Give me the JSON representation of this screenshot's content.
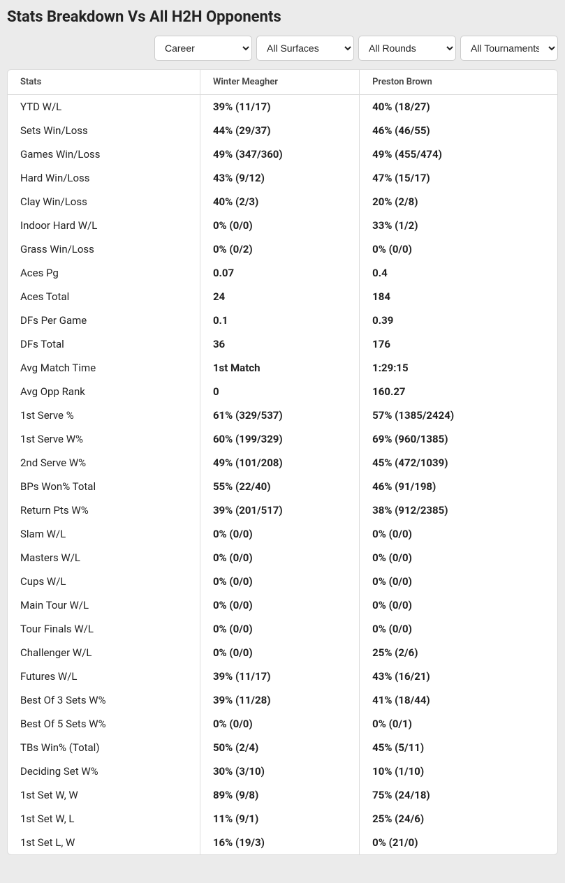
{
  "title": "Stats Breakdown Vs All H2H Opponents",
  "filters": {
    "career": "Career",
    "surfaces": "All Surfaces",
    "rounds": "All Rounds",
    "tournaments": "All Tournaments"
  },
  "columns": {
    "stats": "Stats",
    "p1": "Winter Meagher",
    "p2": "Preston Brown"
  },
  "rows": [
    {
      "label": "YTD W/L",
      "p1": "39% (11/17)",
      "p2": "40% (18/27)"
    },
    {
      "label": "Sets Win/Loss",
      "p1": "44% (29/37)",
      "p2": "46% (46/55)"
    },
    {
      "label": "Games Win/Loss",
      "p1": "49% (347/360)",
      "p2": "49% (455/474)"
    },
    {
      "label": "Hard Win/Loss",
      "p1": "43% (9/12)",
      "p2": "47% (15/17)"
    },
    {
      "label": "Clay Win/Loss",
      "p1": "40% (2/3)",
      "p2": "20% (2/8)"
    },
    {
      "label": "Indoor Hard W/L",
      "p1": "0% (0/0)",
      "p2": "33% (1/2)"
    },
    {
      "label": "Grass Win/Loss",
      "p1": "0% (0/2)",
      "p2": "0% (0/0)"
    },
    {
      "label": "Aces Pg",
      "p1": "0.07",
      "p2": "0.4"
    },
    {
      "label": "Aces Total",
      "p1": "24",
      "p2": "184"
    },
    {
      "label": "DFs Per Game",
      "p1": "0.1",
      "p2": "0.39"
    },
    {
      "label": "DFs Total",
      "p1": "36",
      "p2": "176"
    },
    {
      "label": "Avg Match Time",
      "p1": "1st Match",
      "p2": "1:29:15"
    },
    {
      "label": "Avg Opp Rank",
      "p1": "0",
      "p2": "160.27"
    },
    {
      "label": "1st Serve %",
      "p1": "61% (329/537)",
      "p2": "57% (1385/2424)"
    },
    {
      "label": "1st Serve W%",
      "p1": "60% (199/329)",
      "p2": "69% (960/1385)"
    },
    {
      "label": "2nd Serve W%",
      "p1": "49% (101/208)",
      "p2": "45% (472/1039)"
    },
    {
      "label": "BPs Won% Total",
      "p1": "55% (22/40)",
      "p2": "46% (91/198)"
    },
    {
      "label": "Return Pts W%",
      "p1": "39% (201/517)",
      "p2": "38% (912/2385)"
    },
    {
      "label": "Slam W/L",
      "p1": "0% (0/0)",
      "p2": "0% (0/0)"
    },
    {
      "label": "Masters W/L",
      "p1": "0% (0/0)",
      "p2": "0% (0/0)"
    },
    {
      "label": "Cups W/L",
      "p1": "0% (0/0)",
      "p2": "0% (0/0)"
    },
    {
      "label": "Main Tour W/L",
      "p1": "0% (0/0)",
      "p2": "0% (0/0)"
    },
    {
      "label": "Tour Finals W/L",
      "p1": "0% (0/0)",
      "p2": "0% (0/0)"
    },
    {
      "label": "Challenger W/L",
      "p1": "0% (0/0)",
      "p2": "25% (2/6)"
    },
    {
      "label": "Futures W/L",
      "p1": "39% (11/17)",
      "p2": "43% (16/21)"
    },
    {
      "label": "Best Of 3 Sets W%",
      "p1": "39% (11/28)",
      "p2": "41% (18/44)"
    },
    {
      "label": "Best Of 5 Sets W%",
      "p1": "0% (0/0)",
      "p2": "0% (0/1)"
    },
    {
      "label": "TBs Win% (Total)",
      "p1": "50% (2/4)",
      "p2": "45% (5/11)"
    },
    {
      "label": "Deciding Set W%",
      "p1": "30% (3/10)",
      "p2": "10% (1/10)"
    },
    {
      "label": "1st Set W, W",
      "p1": "89% (9/8)",
      "p2": "75% (24/18)"
    },
    {
      "label": "1st Set W, L",
      "p1": "11% (9/1)",
      "p2": "25% (24/6)"
    },
    {
      "label": "1st Set L, W",
      "p1": "16% (19/3)",
      "p2": "0% (21/0)"
    }
  ]
}
